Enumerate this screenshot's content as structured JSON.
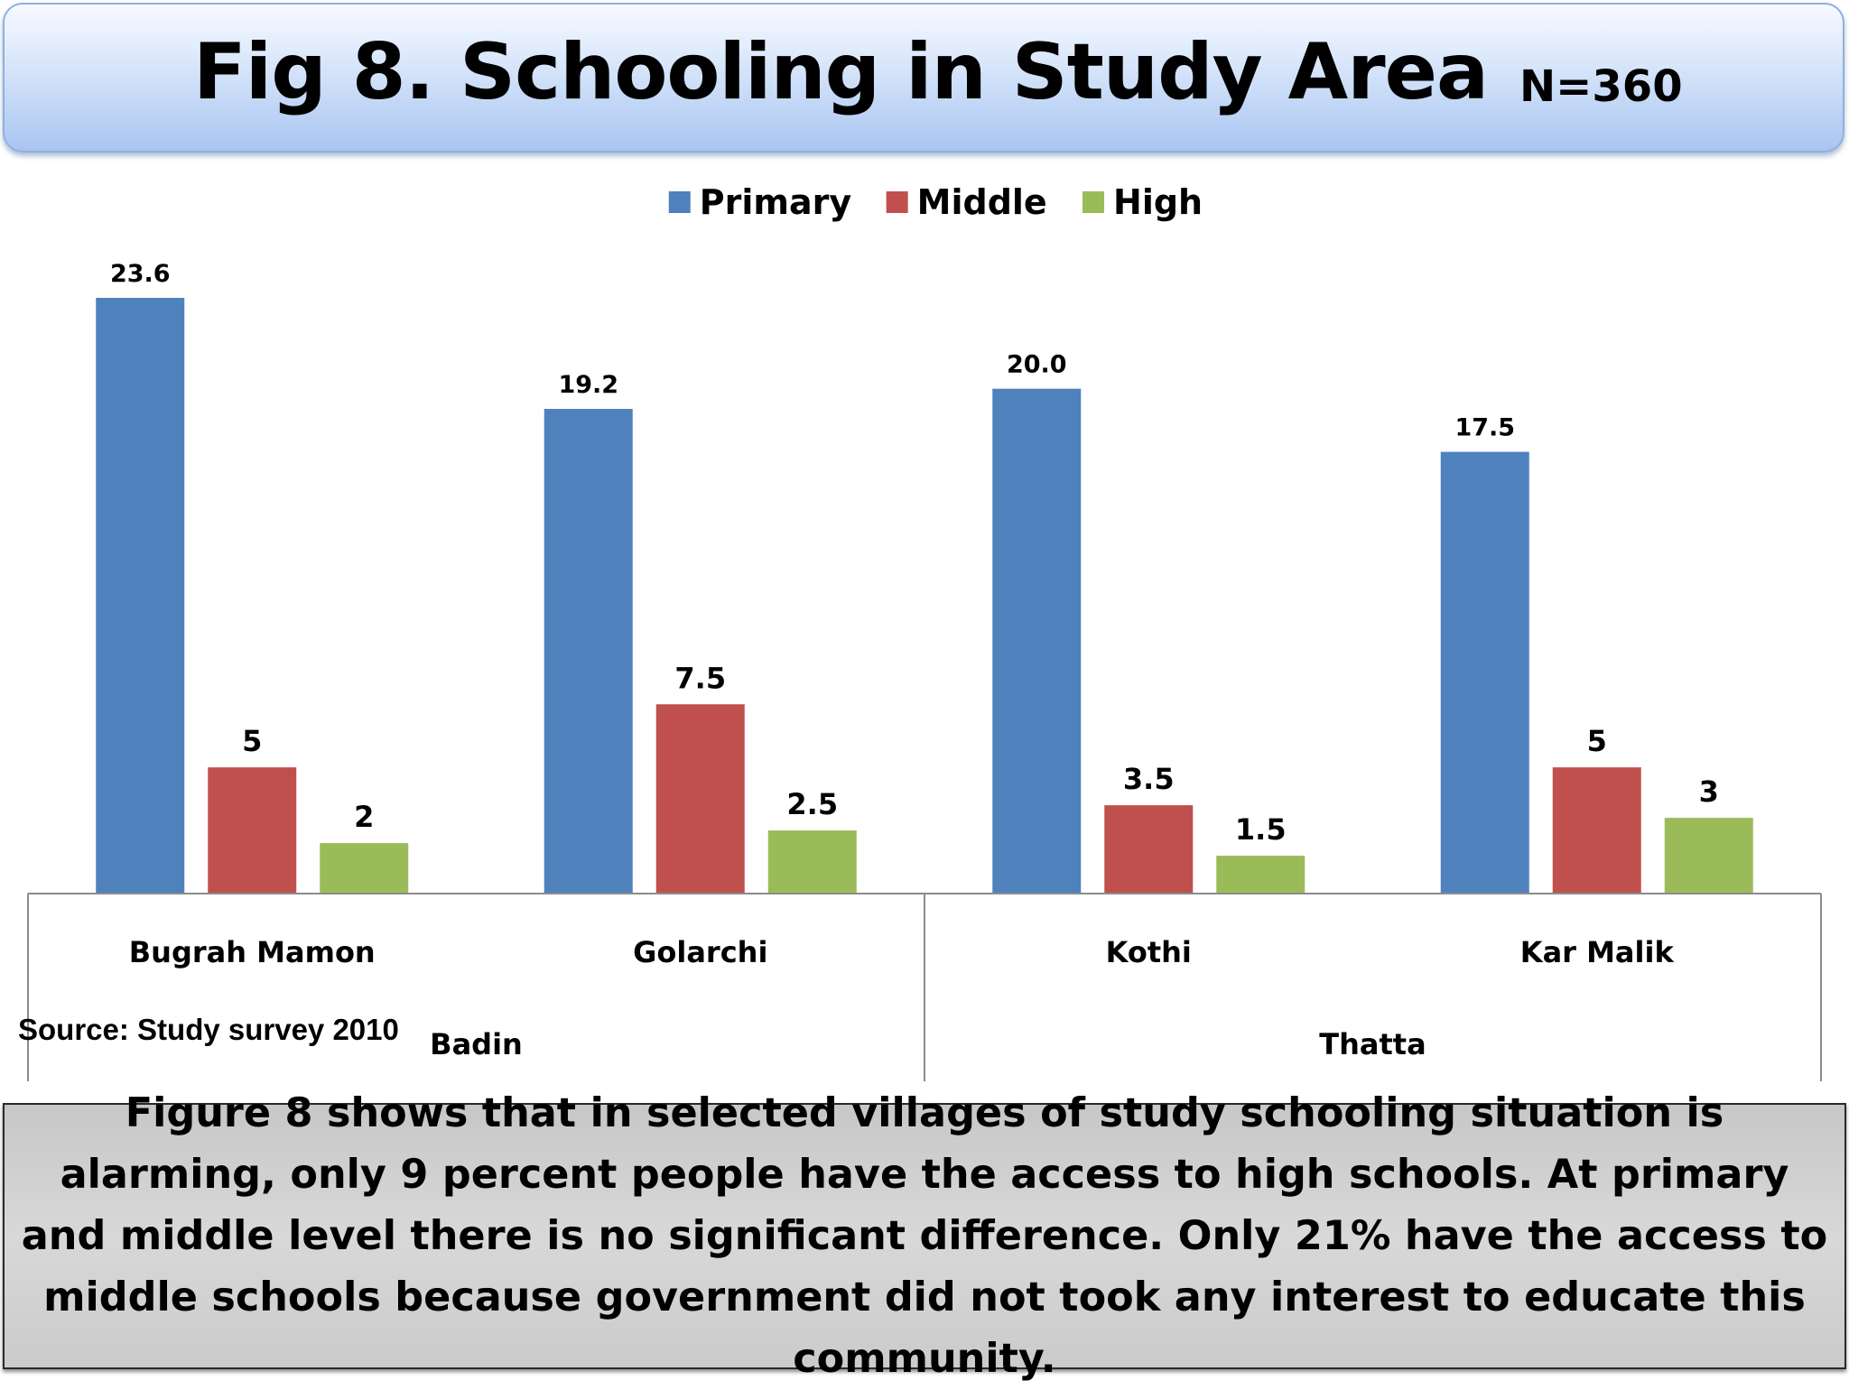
{
  "header": {
    "title": "Fig 8. Schooling in Study Area",
    "sample_size": "N=360"
  },
  "chart_data": {
    "type": "bar",
    "title": "Fig 8. Schooling in Study Area",
    "categories": [
      "Bugrah Mamon",
      "Golarchi",
      "Kothi",
      "Kar Malik"
    ],
    "category_groups": [
      {
        "label": "Badin",
        "categories": [
          "Bugrah Mamon",
          "Golarchi"
        ]
      },
      {
        "label": "Thatta",
        "categories": [
          "Kothi",
          "Kar Malik"
        ]
      }
    ],
    "series": [
      {
        "name": "Primary",
        "color": "#4f81bd",
        "values": [
          23.6,
          19.2,
          20.0,
          17.5
        ],
        "labels": [
          "23.6",
          "19.2",
          "20.0",
          "17.5"
        ]
      },
      {
        "name": "Middle",
        "color": "#c0504d",
        "values": [
          5,
          7.5,
          3.5,
          5
        ],
        "labels": [
          "5",
          "7.5",
          "3.5",
          "5"
        ]
      },
      {
        "name": "High",
        "color": "#9bbb59",
        "values": [
          2,
          2.5,
          1.5,
          3
        ],
        "labels": [
          "2",
          "2.5",
          "1.5",
          "3"
        ]
      }
    ],
    "ylim": [
      0,
      23.6
    ],
    "legend_position": "top-center",
    "grid": false,
    "data_labels": true
  },
  "source_note": "Source: Study survey 2010",
  "footer": {
    "text": "Figure 8 shows that in selected villages of study schooling situation is alarming,  only 9 percent people have the access to high schools. At primary and middle level there is no significant difference. Only 21% have the access to middle schools because government did not took any interest to educate this community."
  }
}
